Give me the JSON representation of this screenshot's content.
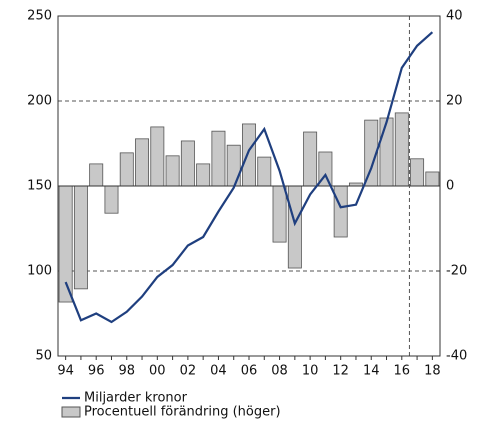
{
  "chart_data": {
    "type": "bar_line",
    "categories": [
      "94",
      null,
      "96",
      null,
      "98",
      null,
      "00",
      null,
      "02",
      null,
      "04",
      null,
      "06",
      null,
      "08",
      null,
      "10",
      null,
      "12",
      null,
      "14",
      null,
      "16",
      null,
      "18"
    ],
    "series": [
      {
        "name": "Miljarder kronor",
        "type": "line",
        "color": "#1f3f7f",
        "axis": "y",
        "values": [
          93.5,
          71,
          75,
          70,
          76,
          85,
          96.5,
          103.5,
          115,
          120,
          135,
          149,
          171,
          183.5,
          159,
          128,
          145,
          156.5,
          137.5,
          139,
          160.5,
          187.5,
          219.5,
          232.5,
          240.5
        ]
      },
      {
        "name": "Procentuell förändring (höger)",
        "type": "bar",
        "color": "#c8c8c8",
        "axis": "y2",
        "values": [
          -27.3,
          -24.2,
          5.2,
          -6.4,
          7.8,
          11.1,
          13.9,
          7.1,
          10.6,
          5.2,
          12.9,
          9.6,
          14.6,
          6.8,
          -13.2,
          -19.3,
          12.7,
          8.0,
          -12.0,
          0.7,
          15.5,
          16.0,
          17.2,
          6.4,
          3.3
        ]
      }
    ],
    "ylim": [
      50,
      250
    ],
    "yticks": [
      50,
      100,
      150,
      200,
      250
    ],
    "y2lim": [
      -40,
      40
    ],
    "y2ticks": [
      -40,
      -20,
      0,
      20,
      40
    ],
    "grid": true
  }
}
